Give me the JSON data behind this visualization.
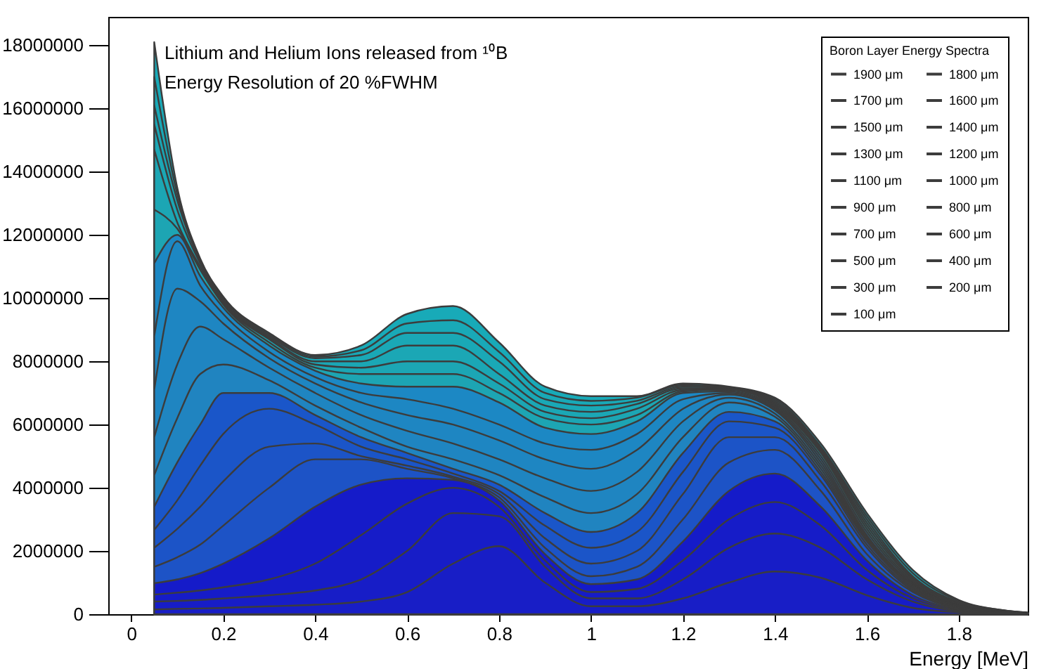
{
  "chart_data": {
    "type": "area",
    "title": "Lithium and Helium Ions released from ¹⁰B",
    "subtitle": "Energy Resolution of 20  %FWHM",
    "xlabel": "Energy [MeV]",
    "legend_title": "Boron Layer Energy Spectra",
    "legend": "top right",
    "grid": false,
    "marker": "none",
    "xlim": [
      -0.05,
      1.95
    ],
    "xticks": [
      0,
      0.2,
      0.4,
      0.6,
      0.8,
      1,
      1.2,
      1.4,
      1.6,
      1.8
    ],
    "ylim": [
      0,
      18900000
    ],
    "yticks": [
      0,
      2000000,
      4000000,
      6000000,
      8000000,
      10000000,
      12000000,
      14000000,
      16000000,
      18000000
    ],
    "x": [
      0.05,
      0.1,
      0.15,
      0.2,
      0.3,
      0.4,
      0.5,
      0.6,
      0.7,
      0.8,
      0.9,
      1.0,
      1.1,
      1.2,
      1.3,
      1.4,
      1.5,
      1.6,
      1.7,
      1.8,
      1.9,
      1.95
    ],
    "series": [
      {
        "name": "1900 μm",
        "color": "#18aab8",
        "values": [
          18100000.0,
          13500000.0,
          11250000.0,
          10050000.0,
          8900000.0,
          8200000.0,
          8500000.0,
          9500000.0,
          9750000.0,
          8600000.0,
          7200000.0,
          6900000.0,
          6900000.0,
          7300000.0,
          7200000.0,
          6850000.0,
          5400000.0,
          3200000.0,
          1400000.0,
          450000.0,
          120000.0,
          50000.0
        ]
      },
      {
        "name": "1800 μm",
        "color": "#19a9b7",
        "values": [
          17000000.0,
          13300000.0,
          11200000.0,
          10000000.0,
          8850000.0,
          8150000.0,
          8350000.0,
          9200000.0,
          9300000.0,
          8300000.0,
          7000000.0,
          6750000.0,
          6850000.0,
          7250000.0,
          7180000.0,
          6800000.0,
          5300000.0,
          3100000.0,
          1300000.0,
          420000.0,
          120000.0,
          50000.0
        ]
      },
      {
        "name": "1700 μm",
        "color": "#1aa8b6",
        "values": [
          16100000.0,
          13100000.0,
          11150000.0,
          9950000.0,
          8800000.0,
          8100000.0,
          8200000.0,
          8900000.0,
          8900000.0,
          8000000.0,
          6800000.0,
          6600000.0,
          6750000.0,
          7200000.0,
          7160000.0,
          6750000.0,
          5250000.0,
          3000000.0,
          1200000.0,
          380000.0,
          110000.0,
          40000.0
        ]
      },
      {
        "name": "1600 μm",
        "color": "#1ba7b5",
        "values": [
          15500000.0,
          12800000.0,
          11100000.0,
          9900000.0,
          8750000.0,
          8000000.0,
          8000000.0,
          8500000.0,
          8500000.0,
          7600000.0,
          6600000.0,
          6400000.0,
          6650000.0,
          7150000.0,
          7140000.0,
          6700000.0,
          5200000.0,
          2900000.0,
          1150000.0,
          350000.0,
          100000.0,
          40000.0
        ]
      },
      {
        "name": "1500 μm",
        "color": "#1ca6b4",
        "values": [
          14700000.0,
          12400000.0,
          11000000.0,
          9850000.0,
          8700000.0,
          7900000.0,
          7800000.0,
          8000000.0,
          8000000.0,
          7300000.0,
          6400000.0,
          6200000.0,
          6500000.0,
          7100000.0,
          7120000.0,
          6650000.0,
          5150000.0,
          2800000.0,
          1100000.0,
          320000.0,
          90000.0,
          40000.0
        ]
      },
      {
        "name": "1400 μm",
        "color": "#1da5b3",
        "values": [
          12800000.0,
          12200000.0,
          10900000.0,
          9800000.0,
          8600000.0,
          7800000.0,
          7600000.0,
          7600000.0,
          7600000.0,
          7000000.0,
          6200000.0,
          6000000.0,
          6300000.0,
          7050000.0,
          7100000.0,
          6600000.0,
          5100000.0,
          2700000.0,
          1050000.0,
          300000.0,
          90000.0,
          30000.0
        ]
      },
      {
        "name": "1300 μm",
        "color": "#1c88c4",
        "values": [
          11100000.0,
          12000000.0,
          10700000.0,
          9700000.0,
          8500000.0,
          7700000.0,
          7300000.0,
          7200000.0,
          7200000.0,
          6700000.0,
          5900000.0,
          5700000.0,
          6100000.0,
          7000000.0,
          7050000.0,
          6550000.0,
          5000000.0,
          2600000.0,
          1000000.0,
          280000.0,
          80000.0,
          30000.0
        ]
      },
      {
        "name": "1200 μm",
        "color": "#1d87c3",
        "values": [
          8800000.0,
          11800000.0,
          10400000.0,
          9500000.0,
          8300000.0,
          7500000.0,
          7000000.0,
          6800000.0,
          6500000.0,
          6000000.0,
          5400000.0,
          5200000.0,
          5700000.0,
          6800000.0,
          7000000.0,
          6500000.0,
          4900000.0,
          2500000.0,
          950000.0,
          270000.0,
          80000.0,
          30000.0
        ]
      },
      {
        "name": "1100 μm",
        "color": "#1e86c2",
        "values": [
          7100000.0,
          10300000.0,
          9900000.0,
          9200000.0,
          8100000.0,
          7300000.0,
          6700000.0,
          6300000.0,
          6000000.0,
          5500000.0,
          4900000.0,
          4600000.0,
          5200000.0,
          6500000.0,
          6950000.0,
          6450000.0,
          4800000.0,
          2450000.0,
          950000.0,
          260000.0,
          80000.0,
          30000.0
        ]
      },
      {
        "name": "1000 μm",
        "color": "#1f85c1",
        "values": [
          5600000.0,
          7900000.0,
          9100000.0,
          8700000.0,
          7800000.0,
          7000000.0,
          6300000.0,
          5800000.0,
          5400000.0,
          4900000.0,
          4300000.0,
          3900000.0,
          4500000.0,
          6100000.0,
          6850000.0,
          6350000.0,
          4700000.0,
          2400000.0,
          900000.0,
          250000.0,
          70000.0,
          30000.0
        ]
      },
      {
        "name": "900 μm",
        "color": "#2084c0",
        "values": [
          4400000.0,
          6200000.0,
          7600000.0,
          7900000.0,
          7400000.0,
          6600000.0,
          5900000.0,
          5300000.0,
          4900000.0,
          4400000.0,
          3700000.0,
          3200000.0,
          3800000.0,
          5600000.0,
          6700000.0,
          6250000.0,
          4600000.0,
          2350000.0,
          900000.0,
          240000.0,
          70000.0,
          30000.0
        ]
      },
      {
        "name": "800 μm",
        "color": "#1a56c9",
        "values": [
          3400000.0,
          4800000.0,
          6000000.0,
          7000000.0,
          7000000.0,
          6300000.0,
          5600000.0,
          5100000.0,
          4600000.0,
          4100000.0,
          3200000.0,
          2600000.0,
          3200000.0,
          5100000.0,
          6400000.0,
          6100000.0,
          4500000.0,
          2300000.0,
          850000.0,
          230000.0,
          70000.0,
          30000.0
        ]
      },
      {
        "name": "700 μm",
        "color": "#1b55c8",
        "values": [
          2670000.0,
          3600000.0,
          4700000.0,
          5700000.0,
          6500000.0,
          6000000.0,
          5300000.0,
          4900000.0,
          4450000.0,
          3900000.0,
          2800000.0,
          2100000.0,
          2600000.0,
          4500000.0,
          6100000.0,
          5900000.0,
          4400000.0,
          2200000.0,
          800000.0,
          220000.0,
          60000.0,
          30000.0
        ]
      },
      {
        "name": "600 μm",
        "color": "#1c54c7",
        "values": [
          2100000.0,
          2700000.0,
          3400000.0,
          4200000.0,
          5300000.0,
          5400000.0,
          5000000.0,
          4700000.0,
          4350000.0,
          3800000.0,
          2400000.0,
          1600000.0,
          2000000.0,
          3800000.0,
          5600000.0,
          5600000.0,
          4200000.0,
          2100000.0,
          750000.0,
          200000.0,
          60000.0,
          20000.0
        ]
      },
      {
        "name": "500 μm",
        "color": "#1d53c6",
        "values": [
          1500000.0,
          1800000.0,
          2200000.0,
          2800000.0,
          4000000.0,
          4900000.0,
          4900000.0,
          4600000.0,
          4300000.0,
          3700000.0,
          2100000.0,
          1200000.0,
          1500000.0,
          3000000.0,
          4800000.0,
          5200000.0,
          3900000.0,
          1900000.0,
          700000.0,
          180000.0,
          50000.0,
          20000.0
        ]
      },
      {
        "name": "400 μm",
        "color": "#151bc9",
        "values": [
          980000.0,
          1100000.0,
          1300000.0,
          1600000.0,
          2400000.0,
          3400000.0,
          4100000.0,
          4300000.0,
          4250000.0,
          3600000.0,
          1900000.0,
          950000.0,
          1100000.0,
          2300000.0,
          3900000.0,
          4450000.0,
          3400000.0,
          1700000.0,
          600000.0,
          160000.0,
          50000.0,
          20000.0
        ]
      },
      {
        "name": "300 μm",
        "color": "#161cc8",
        "values": [
          620000.0,
          680000.0,
          750000.0,
          850000.0,
          1100000.0,
          1600000.0,
          2500000.0,
          3500000.0,
          4000000.0,
          3400000.0,
          1700000.0,
          700000.0,
          800000.0,
          1700000.0,
          3000000.0,
          3550000.0,
          2800000.0,
          1400000.0,
          500000.0,
          130000.0,
          40000.0,
          20000.0
        ]
      },
      {
        "name": "200 μm",
        "color": "#171dc7",
        "values": [
          400000.0,
          420000.0,
          450000.0,
          500000.0,
          600000.0,
          750000.0,
          1100000.0,
          2000000.0,
          3200000.0,
          3100000.0,
          1500000.0,
          500000.0,
          500000.0,
          1100000.0,
          2100000.0,
          2550000.0,
          2100000.0,
          1100000.0,
          400000.0,
          100000.0,
          30000.0,
          10000.0
        ]
      },
      {
        "name": "100 μm",
        "color": "#181ec6",
        "values": [
          150000.0,
          170000.0,
          180000.0,
          200000.0,
          250000.0,
          300000.0,
          400000.0,
          700000.0,
          1600000.0,
          2150000.0,
          1000000.0,
          250000.0,
          250000.0,
          500000.0,
          1000000.0,
          1350000.0,
          1150000.0,
          600000.0,
          200000.0,
          60000.0,
          20000.0,
          10000.0
        ]
      }
    ]
  }
}
